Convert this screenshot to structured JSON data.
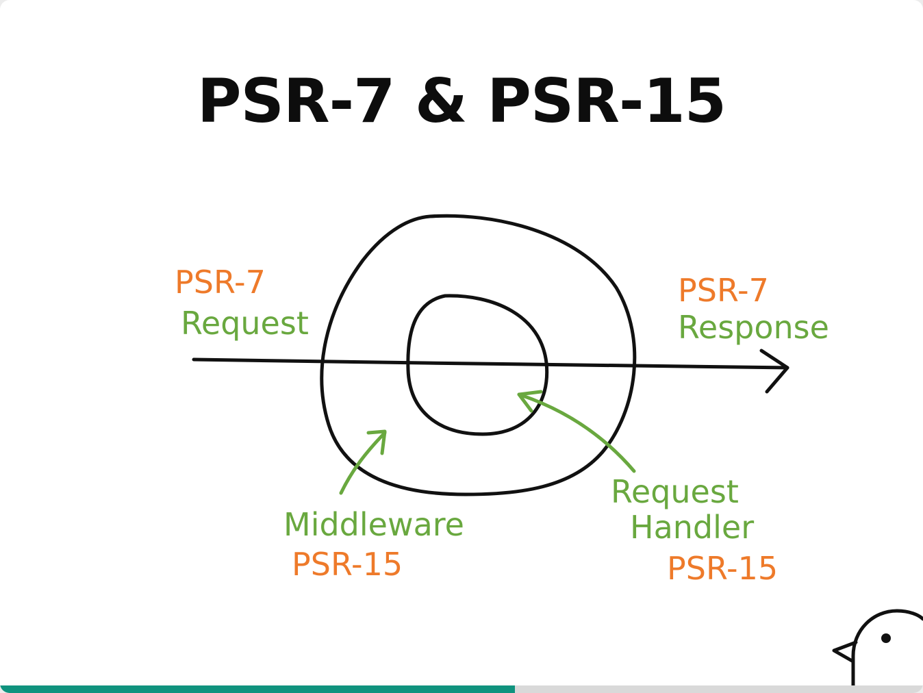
{
  "slide": {
    "title": "PSR-7 & PSR-15"
  },
  "diagram": {
    "input_label_line1": "PSR-7",
    "input_label_line2": "Request",
    "output_label_line1": "PSR-7",
    "output_label_line2": "Response",
    "middleware_label_line1": "Middleware",
    "middleware_label_line2": "PSR-15",
    "handler_label_line1": "Request",
    "handler_label_line2": "Handler",
    "handler_label_line3": "PSR-15",
    "colors": {
      "orange": "#ee7a2a",
      "green": "#69a83f",
      "ink": "#111111"
    }
  },
  "progress": {
    "fraction": 0.558,
    "fill_color": "#10937e"
  },
  "mascot": {
    "icon": "bird-mascot-icon"
  }
}
